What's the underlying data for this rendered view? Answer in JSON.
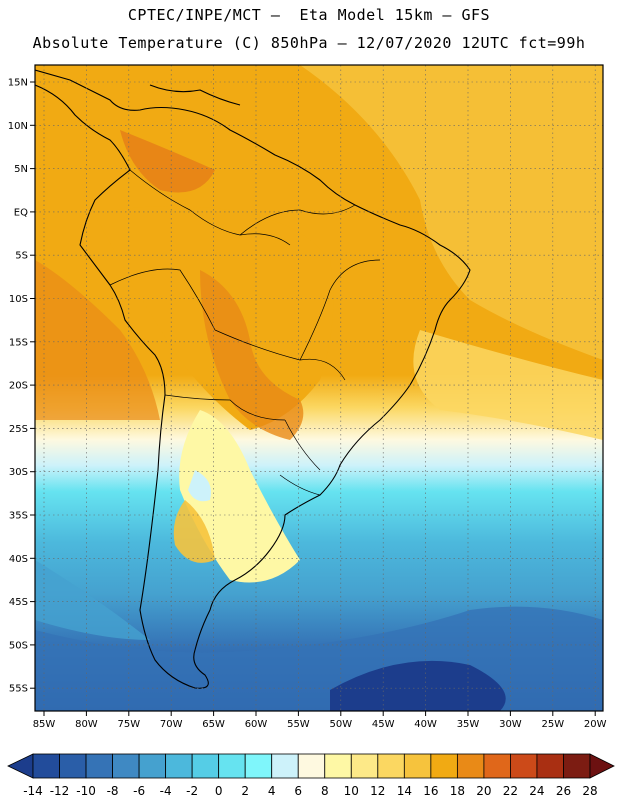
{
  "header": {
    "line1": "CPTEC/INPE/MCT –  Eta Model 15km – GFS",
    "line2": "Absolute Temperature (C) 850hPa – 12/07/2020 12UTC fct=99h"
  },
  "map": {
    "region": "South America",
    "lat_labels": [
      "15N",
      "10N",
      "5N",
      "EQ",
      "5S",
      "10S",
      "15S",
      "20S",
      "25S",
      "30S",
      "35S",
      "40S",
      "45S",
      "50S",
      "55S"
    ],
    "lon_labels": [
      "85W",
      "80W",
      "75W",
      "70W",
      "65W",
      "60W",
      "55W",
      "50W",
      "45W",
      "40W",
      "35W",
      "30W",
      "25W",
      "20W"
    ]
  },
  "colorbar": {
    "labels": [
      "-14",
      "-12",
      "-10",
      "-8",
      "-6",
      "-4",
      "-2",
      "0",
      "2",
      "4",
      "6",
      "8",
      "10",
      "12",
      "14",
      "16",
      "18",
      "20",
      "22",
      "24",
      "26",
      "28"
    ],
    "colors": [
      "#1c3d8c",
      "#224c9b",
      "#2a5ea8",
      "#3573b6",
      "#3f89c3",
      "#45a1cf",
      "#4cb8dc",
      "#55cde6",
      "#66e3f0",
      "#7ff6fb",
      "#cdf2fa",
      "#fef9e0",
      "#fef8a5",
      "#fde988",
      "#fbd761",
      "#f6c33d",
      "#f1aa13",
      "#e98a17",
      "#e0671a",
      "#cc4a19",
      "#a92f12",
      "#7c1c12",
      "#6c1111"
    ]
  }
}
